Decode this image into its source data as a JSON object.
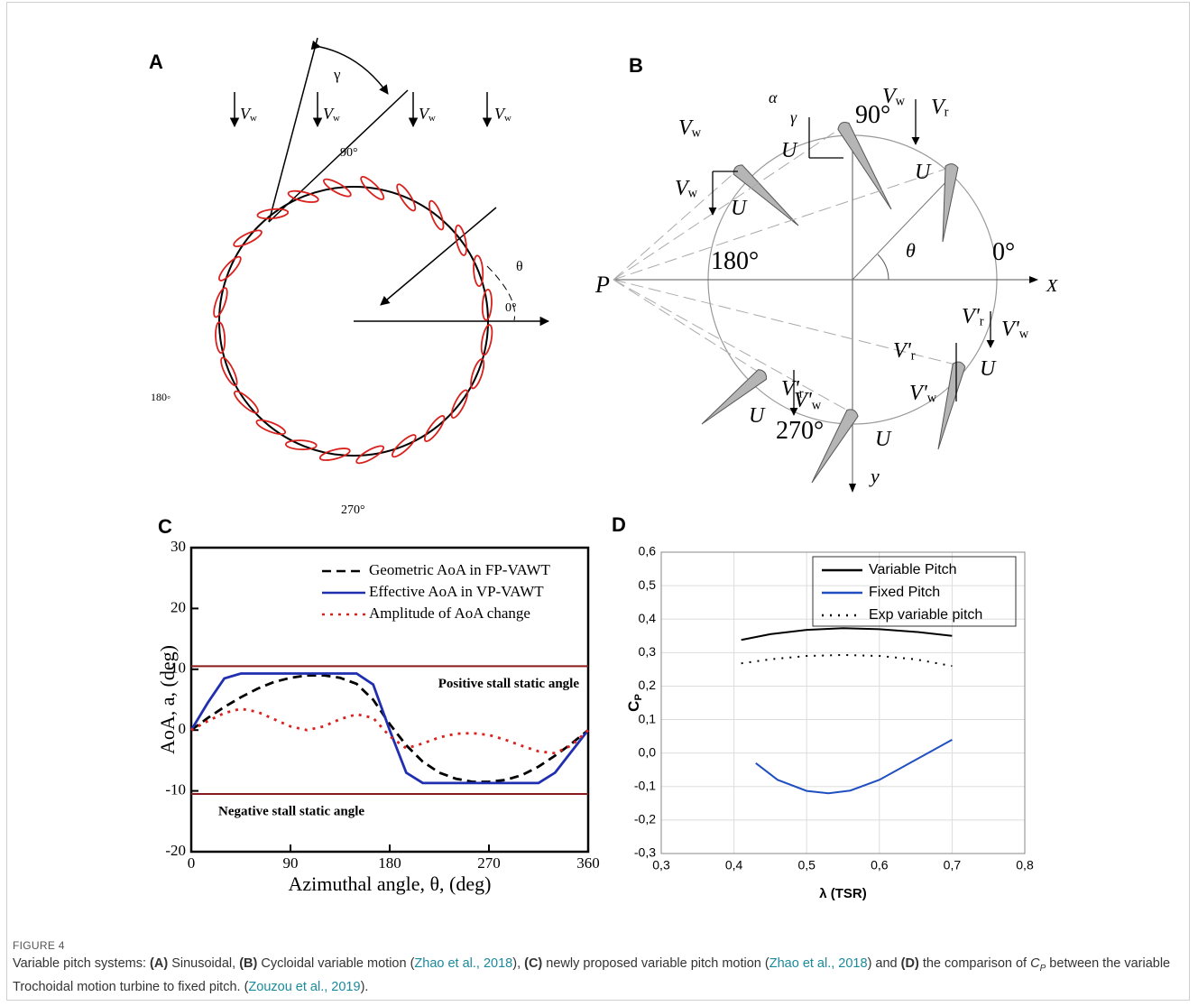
{
  "panel_a": {
    "label": "A",
    "labels": [
      {
        "text": "γ"
      },
      {
        "text": "V",
        "sub": "w"
      },
      {
        "text": "V",
        "sub": "w"
      },
      {
        "text": "V",
        "sub": "w"
      },
      {
        "text": "V",
        "sub": "w"
      },
      {
        "text": "90°"
      },
      {
        "text": "θ"
      },
      {
        "text": "0°"
      },
      {
        "text": "180◦"
      },
      {
        "text": "270°"
      }
    ]
  },
  "panel_b": {
    "label": "B",
    "labels": [
      {
        "text": "V",
        "sub": "w"
      },
      {
        "text": "α"
      },
      {
        "text": "γ"
      },
      {
        "text": "90°"
      },
      {
        "text": "V",
        "sub": "w"
      },
      {
        "text": "V",
        "sub": "r"
      },
      {
        "text": "U"
      },
      {
        "text": "U"
      },
      {
        "text": "V",
        "sub": "w"
      },
      {
        "text": "U"
      },
      {
        "text": "180°"
      },
      {
        "text": "θ"
      },
      {
        "text": "0°"
      },
      {
        "text": "P"
      },
      {
        "text": "X"
      },
      {
        "text": "V'",
        "sub": "r"
      },
      {
        "text": "V'",
        "sub": "w"
      },
      {
        "text": "V'",
        "sub": "r"
      },
      {
        "text": "U"
      },
      {
        "text": "V'",
        "sub": "r"
      },
      {
        "text": "V'",
        "sub": "w"
      },
      {
        "text": "V'",
        "sub": "w"
      },
      {
        "text": "U"
      },
      {
        "text": "U"
      },
      {
        "text": "270°"
      },
      {
        "text": "y"
      }
    ]
  },
  "chart_data": [
    {
      "type": "line",
      "panel": "C",
      "x_label": "Azimuthal angle, θ, (deg)",
      "y_label": "AoA, a, (deg)",
      "xlim": [
        0,
        360
      ],
      "xticks": [
        0,
        90,
        180,
        270,
        360
      ],
      "ylim": [
        -20,
        30
      ],
      "yticks": [
        -20,
        -10,
        0,
        10,
        20,
        30
      ],
      "legend": "upper right",
      "x": [
        0,
        15,
        30,
        45,
        60,
        75,
        90,
        105,
        120,
        135,
        150,
        165,
        180,
        195,
        210,
        225,
        240,
        255,
        270,
        285,
        300,
        315,
        330,
        345,
        360
      ],
      "series": [
        {
          "name": "Geometric AoA in FP-VAWT",
          "color": "#000000",
          "dash": "dashed",
          "values": [
            0,
            2.0,
            3.8,
            5.4,
            6.8,
            7.9,
            8.6,
            9.0,
            9.0,
            8.6,
            7.6,
            5.0,
            1.0,
            -2.5,
            -5.2,
            -7.0,
            -8.0,
            -8.5,
            -8.5,
            -8.2,
            -7.4,
            -6.0,
            -4.2,
            -2.2,
            0
          ]
        },
        {
          "name": "Effective AoA in VP-VAWT",
          "color": "#1f2fb0",
          "dash": "solid",
          "values": [
            0,
            4.5,
            8.5,
            9.3,
            9.3,
            9.3,
            9.3,
            9.3,
            9.3,
            9.3,
            9.3,
            7.5,
            0,
            -7.0,
            -8.7,
            -8.7,
            -8.7,
            -8.7,
            -8.7,
            -8.7,
            -8.7,
            -8.7,
            -7.0,
            -3.5,
            0
          ]
        },
        {
          "name": "Amplitude of AoA change",
          "color": "#d9211d",
          "dash": "dotted",
          "values": [
            0,
            1.5,
            2.8,
            3.5,
            3.0,
            1.8,
            0.6,
            0,
            0.6,
            1.8,
            2.6,
            2.0,
            -1.0,
            -3.0,
            -2.2,
            -1.2,
            -0.6,
            -0.5,
            -0.8,
            -1.6,
            -2.6,
            -3.5,
            -3.8,
            -2.5,
            0
          ]
        }
      ],
      "reference_lines": [
        {
          "value": 10.5,
          "label": "Positive stall static angle",
          "color": "#8b1a1a"
        },
        {
          "value": -10.5,
          "label": "Negative stall static angle",
          "color": "#8b1a1a"
        }
      ]
    },
    {
      "type": "line",
      "panel": "D",
      "x_label": "λ (TSR)",
      "y_label": {
        "symbol": "C",
        "subscript": "P"
      },
      "grid": true,
      "legend": "upper right",
      "xlim": [
        0.3,
        0.8
      ],
      "xticks": [
        {
          "value": 0.3,
          "label": "0,3"
        },
        {
          "value": 0.4,
          "label": "0,4"
        },
        {
          "value": 0.5,
          "label": "0,5"
        },
        {
          "value": 0.6,
          "label": "0,6"
        },
        {
          "value": 0.7,
          "label": "0,7"
        },
        {
          "value": 0.8,
          "label": "0,8"
        }
      ],
      "ylim": [
        -0.3,
        0.6
      ],
      "yticks": [
        {
          "value": -0.3,
          "label": "-0,3"
        },
        {
          "value": -0.2,
          "label": "-0,2"
        },
        {
          "value": -0.1,
          "label": "-0,1"
        },
        {
          "value": 0,
          "label": "0,0"
        },
        {
          "value": 0.1,
          "label": "0,1"
        },
        {
          "value": 0.2,
          "label": "0,2"
        },
        {
          "value": 0.3,
          "label": "0,3"
        },
        {
          "value": 0.4,
          "label": "0,4"
        },
        {
          "value": 0.5,
          "label": "0,5"
        },
        {
          "value": 0.6,
          "label": "0,6"
        }
      ],
      "series": [
        {
          "name": "Variable Pitch",
          "color": "#000000",
          "dash": "solid",
          "x": [
            0.41,
            0.45,
            0.5,
            0.55,
            0.6,
            0.65,
            0.7
          ],
          "values": [
            0.338,
            0.355,
            0.368,
            0.373,
            0.37,
            0.362,
            0.35
          ]
        },
        {
          "name": "Fixed Pitch",
          "color": "#1f4fc0",
          "dash": "solid",
          "x": [
            0.43,
            0.46,
            0.5,
            0.53,
            0.56,
            0.6,
            0.65,
            0.7
          ],
          "values": [
            -0.03,
            -0.08,
            -0.113,
            -0.12,
            -0.112,
            -0.08,
            -0.02,
            0.04
          ]
        },
        {
          "name": "Exp variable pitch",
          "color": "#000000",
          "dash": "dotted",
          "x": [
            0.41,
            0.45,
            0.5,
            0.55,
            0.6,
            0.65,
            0.7
          ],
          "values": [
            0.268,
            0.28,
            0.29,
            0.293,
            0.29,
            0.28,
            0.26
          ]
        }
      ]
    }
  ],
  "figure_label": "FIGURE 4",
  "caption": [
    "Variable pitch systems: ",
    "(A)",
    " Sinusoidal, ",
    "(B)",
    " Cycloidal variable motion (",
    "Zhao et al., 2018",
    "), ",
    "(C)",
    " newly proposed variable pitch motion (",
    "Zhao et al., 2018",
    ") and ",
    "(D)",
    " the comparison of ",
    "C",
    "P",
    " between the variable Trochoidal motion turbine to fixed pitch. (",
    "Zouzou et al., 2019",
    ")."
  ]
}
